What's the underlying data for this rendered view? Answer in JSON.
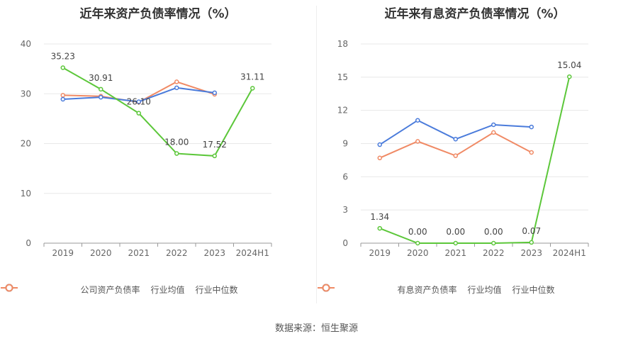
{
  "footer": {
    "source_label": "数据来源：恒生聚源"
  },
  "legend_icon": "circle-line-marker-icon",
  "colors": {
    "company": "#5cc73a",
    "industry_avg": "#4a7bdb",
    "industry_median": "#f08a65",
    "grid": "#e8e8e8",
    "axis": "#999999",
    "text": "#666666",
    "label": "#444444"
  },
  "chart_data": [
    {
      "type": "line",
      "title": "近年来资产负债率情况（%）",
      "categories": [
        "2019",
        "2020",
        "2021",
        "2022",
        "2023",
        "2024H1"
      ],
      "y_ticks": [
        0,
        10,
        20,
        30,
        40
      ],
      "ylim": [
        0,
        40
      ],
      "grid": true,
      "legend_position": "bottom",
      "series": [
        {
          "name": "公司资产负债率",
          "color": "#5cc73a",
          "values": [
            35.23,
            30.91,
            26.1,
            18.0,
            17.52,
            31.11
          ],
          "labels": [
            "35.23",
            "30.91",
            "26.10",
            "18.00",
            "17.52",
            "31.11"
          ]
        },
        {
          "name": "行业均值",
          "color": "#4a7bdb",
          "values": [
            28.9,
            29.3,
            28.4,
            31.2,
            30.2,
            null
          ]
        },
        {
          "name": "行业中位数",
          "color": "#f08a65",
          "values": [
            29.7,
            29.5,
            28.3,
            32.4,
            29.9,
            null
          ]
        }
      ]
    },
    {
      "type": "line",
      "title": "近年来有息资产负债率情况（%）",
      "categories": [
        "2019",
        "2020",
        "2021",
        "2022",
        "2023",
        "2024H1"
      ],
      "y_ticks": [
        0,
        3,
        6,
        9,
        12,
        15,
        18
      ],
      "ylim": [
        0,
        18
      ],
      "grid": true,
      "legend_position": "bottom",
      "series": [
        {
          "name": "有息资产负债率",
          "color": "#5cc73a",
          "values": [
            1.34,
            0.0,
            0.0,
            0.0,
            0.07,
            15.04
          ],
          "labels": [
            "1.34",
            "0.00",
            "0.00",
            "0.00",
            "0.07",
            "15.04"
          ]
        },
        {
          "name": "行业均值",
          "color": "#4a7bdb",
          "values": [
            8.9,
            11.1,
            9.4,
            10.7,
            10.5,
            null
          ]
        },
        {
          "name": "行业中位数",
          "color": "#f08a65",
          "values": [
            7.7,
            9.2,
            7.9,
            10.0,
            8.2,
            null
          ]
        }
      ]
    }
  ]
}
